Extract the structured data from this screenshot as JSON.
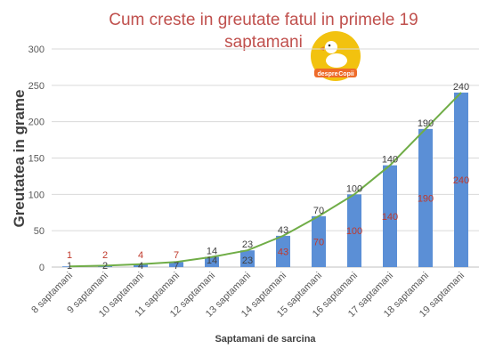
{
  "chart_data": {
    "type": "bar",
    "title_line1": "Cum creste in greutate fatul in primele 19",
    "title_line2": "saptamani",
    "ylabel": "Greutatea in grame",
    "xlabel": "Saptamani de sarcina",
    "ylim": [
      0,
      300
    ],
    "yticks": [
      "0",
      "50",
      "100",
      "150",
      "200",
      "250",
      "300"
    ],
    "grid": "horizontal",
    "categories": [
      "8 saptamani",
      "9 saptamani",
      "10 saptamani",
      "11 saptamani",
      "12 saptamani",
      "13 saptamani",
      "14 saptamani",
      "15 saptamani",
      "16 saptamani",
      "17 saptamani",
      "18 saptamani",
      "19 saptamani"
    ],
    "values": [
      1,
      2,
      4,
      7,
      14,
      23,
      43,
      70,
      100,
      140,
      190,
      240
    ],
    "labels": [
      "1",
      "2",
      "4",
      "7",
      "14",
      "23",
      "43",
      "70",
      "100",
      "140",
      "190",
      "240"
    ],
    "trendline": true,
    "colors": {
      "bar": "#5b8fd6",
      "line": "#70ad47",
      "title": "#c0504d",
      "inner_label": "#c0392b",
      "grid": "#d9d9d9"
    }
  },
  "logo": {
    "text1": "despre",
    "text2": "Copii",
    "icon": "duck-icon"
  }
}
